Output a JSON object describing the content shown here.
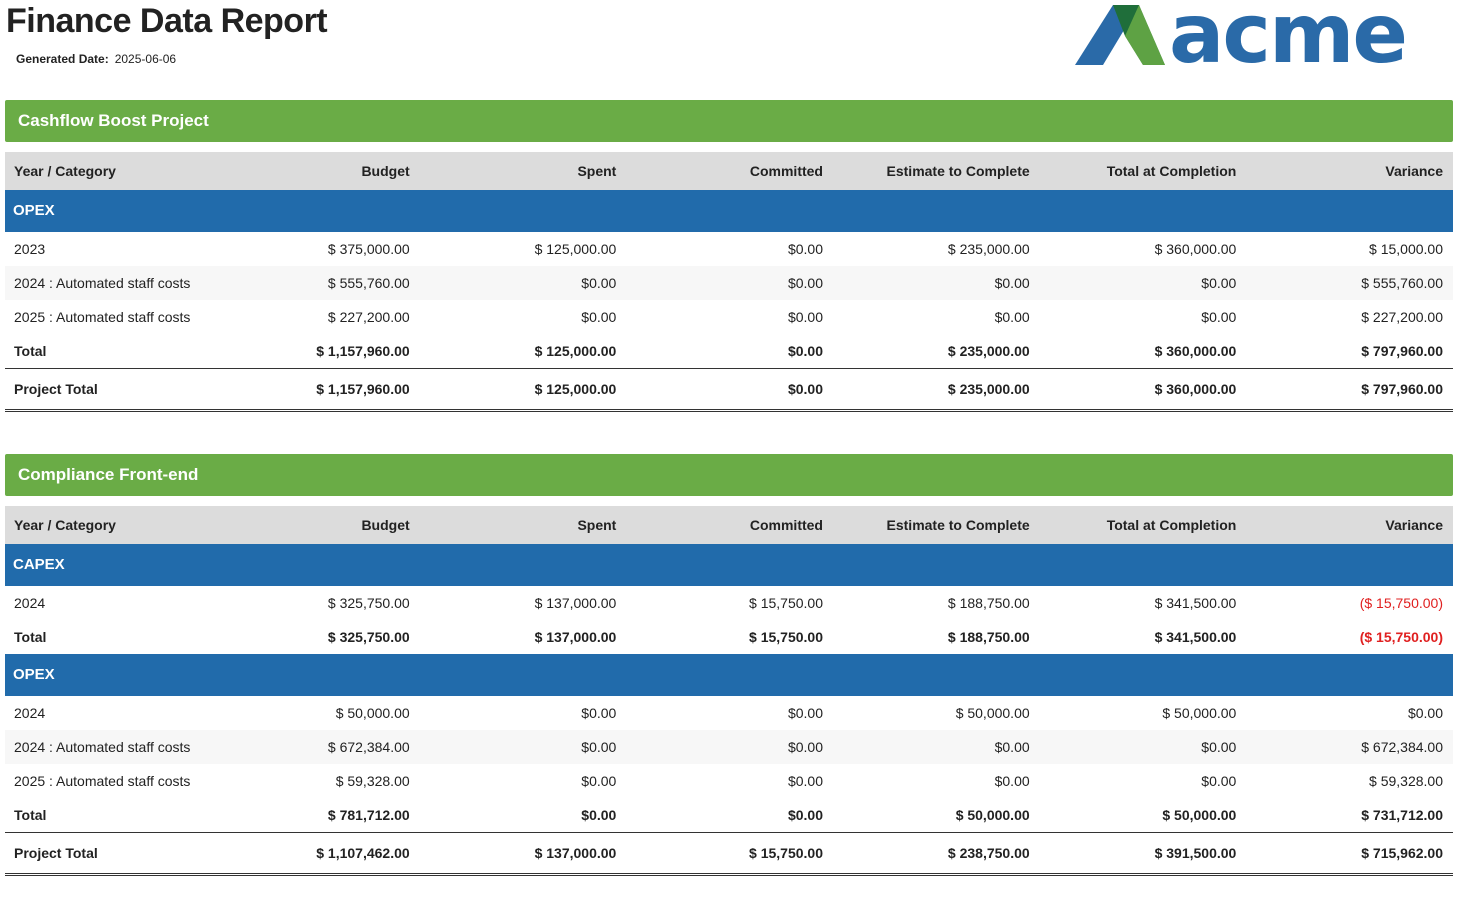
{
  "header": {
    "title": "Finance Data Report",
    "generated_label": "Generated Date:",
    "generated_date": "2025-06-06",
    "logo": "acme"
  },
  "columns": [
    "Year / Category",
    "Budget",
    "Spent",
    "Committed",
    "Estimate to Complete",
    "Total at Completion",
    "Variance"
  ],
  "projects": [
    {
      "name": "Cashflow Boost Project",
      "groups": [
        {
          "name": "OPEX",
          "rows": [
            [
              "2023",
              "$ 375,000.00",
              "$ 125,000.00",
              "$0.00",
              "$ 235,000.00",
              "$ 360,000.00",
              "$ 15,000.00"
            ],
            [
              "2024 : Automated staff costs",
              "$ 555,760.00",
              "$0.00",
              "$0.00",
              "$0.00",
              "$0.00",
              "$ 555,760.00"
            ],
            [
              "2025 : Automated staff costs",
              "$ 227,200.00",
              "$0.00",
              "$0.00",
              "$0.00",
              "$0.00",
              "$ 227,200.00"
            ]
          ],
          "total": [
            "Total",
            "$ 1,157,960.00",
            "$ 125,000.00",
            "$0.00",
            "$ 235,000.00",
            "$ 360,000.00",
            "$ 797,960.00"
          ]
        }
      ],
      "project_total": [
        "Project Total",
        "$ 1,157,960.00",
        "$ 125,000.00",
        "$0.00",
        "$ 235,000.00",
        "$ 360,000.00",
        "$ 797,960.00"
      ]
    },
    {
      "name": "Compliance Front-end",
      "groups": [
        {
          "name": "CAPEX",
          "rows": [
            [
              "2024",
              "$ 325,750.00",
              "$ 137,000.00",
              "$ 15,750.00",
              "$ 188,750.00",
              "$ 341,500.00",
              "($ 15,750.00)"
            ]
          ],
          "total": [
            "Total",
            "$ 325,750.00",
            "$ 137,000.00",
            "$ 15,750.00",
            "$ 188,750.00",
            "$ 341,500.00",
            "($ 15,750.00)"
          ]
        },
        {
          "name": "OPEX",
          "rows": [
            [
              "2024",
              "$ 50,000.00",
              "$0.00",
              "$0.00",
              "$ 50,000.00",
              "$ 50,000.00",
              "$0.00"
            ],
            [
              "2024 : Automated staff costs",
              "$ 672,384.00",
              "$0.00",
              "$0.00",
              "$0.00",
              "$0.00",
              "$ 672,384.00"
            ],
            [
              "2025 : Automated staff costs",
              "$ 59,328.00",
              "$0.00",
              "$0.00",
              "$0.00",
              "$0.00",
              "$ 59,328.00"
            ]
          ],
          "total": [
            "Total",
            "$ 781,712.00",
            "$0.00",
            "$0.00",
            "$ 50,000.00",
            "$ 50,000.00",
            "$ 731,712.00"
          ]
        }
      ],
      "project_total": [
        "Project Total",
        "$ 1,107,462.00",
        "$ 137,000.00",
        "$ 15,750.00",
        "$ 238,750.00",
        "$ 391,500.00",
        "$ 715,962.00"
      ]
    }
  ]
}
